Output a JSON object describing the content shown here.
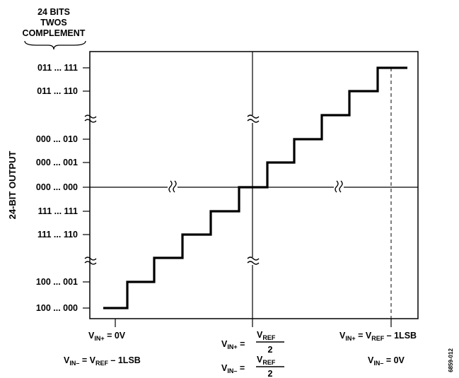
{
  "header": {
    "lines": [
      "24 BITS",
      "TWOS",
      "COMPLEMENT"
    ]
  },
  "y_axis_title": "24-BIT OUTPUT",
  "y_ticks": [
    "011 ... 111",
    "011 ... 110",
    "000 ... 010",
    "000 ... 001",
    "000 ... 000",
    "111 ... 111",
    "111 ... 110",
    "100 ... 001",
    "100 ... 000"
  ],
  "bottom_labels": {
    "left_vin_plus": {
      "v": "V",
      "sub": "IN+",
      "rest": " = 0V"
    },
    "left_vin_minus": {
      "v": "V",
      "sub": "IN–",
      "mid": " = V",
      "sub2": "REF",
      "rest": " – 1LSB"
    },
    "center_plus": {
      "v": "V",
      "sub": "IN+",
      "eq": " =",
      "num": "V",
      "num_sub": "REF",
      "den": "2"
    },
    "center_minus": {
      "v": "V",
      "sub": "IN–",
      "eq": " =",
      "num": "V",
      "num_sub": "REF",
      "den": "2"
    },
    "right_vin_plus": {
      "v": "V",
      "sub": "IN+",
      "mid": " = V",
      "sub2": "REF",
      "rest": " – 1LSB"
    },
    "right_vin_minus": {
      "v": "V",
      "sub": "IN–",
      "rest": " = 0V"
    }
  },
  "figure_id": "6859-012"
}
